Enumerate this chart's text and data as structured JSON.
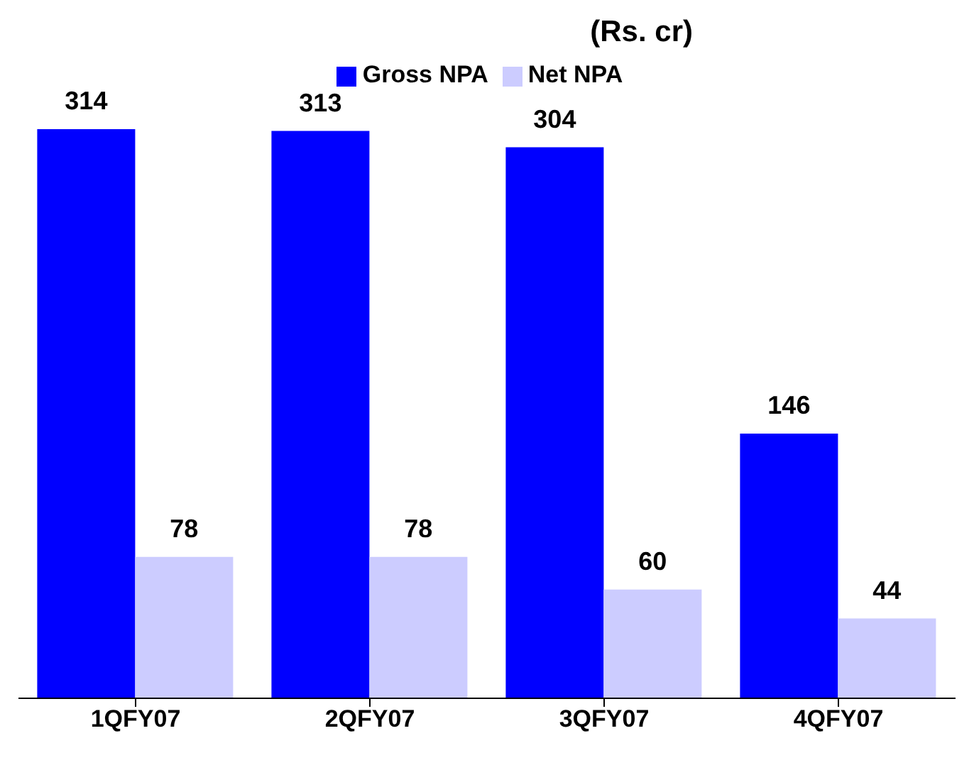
{
  "chart_data": {
    "type": "bar",
    "title": "(Rs. cr)",
    "categories": [
      "1QFY07",
      "2QFY07",
      "3QFY07",
      "4QFY07"
    ],
    "series": [
      {
        "name": "Gross NPA",
        "color": "#0000ff",
        "values": [
          314,
          313,
          304,
          146
        ]
      },
      {
        "name": "Net NPA",
        "color": "#ccccff",
        "values": [
          78,
          78,
          60,
          44
        ]
      }
    ],
    "data_labels": true,
    "legend": "top",
    "grid": false
  }
}
